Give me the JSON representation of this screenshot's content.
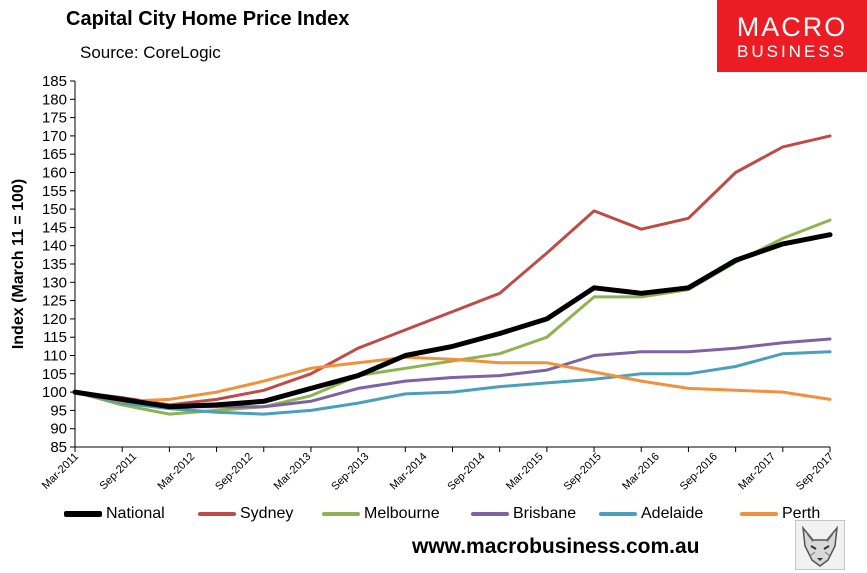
{
  "header": {
    "title": "Capital City Home Price Index",
    "subtitle": "Source: CoreLogic"
  },
  "brand": {
    "name": "MACRO",
    "sub": "BUSINESS",
    "color": "#ec1c24"
  },
  "footer": {
    "url": "www.macrobusiness.com.au",
    "icon": "fox-icon"
  },
  "chart_data": {
    "type": "line",
    "title": "Capital City Home Price Index",
    "subtitle": "Source: CoreLogic",
    "ylabel": "Index (March 11 = 100)",
    "xlabel": "",
    "ylim": [
      85,
      185
    ],
    "yticks": [
      "85",
      "90",
      "95",
      "100",
      "105",
      "110",
      "115",
      "120",
      "125",
      "130",
      "135",
      "140",
      "145",
      "150",
      "155",
      "160",
      "165",
      "170",
      "175",
      "180",
      "185"
    ],
    "x_start": "Mar-2011",
    "x_step": "quarter",
    "x_tick_labels": [
      "Mar-2011",
      "Sep-2011",
      "Mar-2012",
      "Sep-2012",
      "Mar-2013",
      "Sep-2013",
      "Mar-2014",
      "Sep-2014",
      "Mar-2015",
      "Sep-2015",
      "Mar-2016",
      "Sep-2016",
      "Mar-2017",
      "Sep-2017"
    ],
    "grid": false,
    "legend": "bottom",
    "series": [
      {
        "name": "National",
        "color": "#000000",
        "width": 5,
        "values": [
          100,
          98,
          96,
          96.5,
          97.5,
          101,
          104.5,
          110,
          112.5,
          116,
          120,
          128.5,
          127,
          128.5,
          136,
          140.5,
          143
        ]
      },
      {
        "name": "Sydney",
        "color": "#be4b48",
        "width": 3,
        "values": [
          100,
          98.5,
          96.5,
          98,
          100.5,
          105,
          112,
          117,
          122,
          127,
          138,
          149.5,
          144.5,
          147.5,
          160,
          167,
          170
        ]
      },
      {
        "name": "Melbourne",
        "color": "#8eb350",
        "width": 3,
        "values": [
          100,
          96.5,
          94,
          95,
          96,
          99,
          104.5,
          106.5,
          108.5,
          110.5,
          115,
          126,
          126,
          128,
          135.5,
          142,
          147
        ]
      },
      {
        "name": "Brisbane",
        "color": "#7e62a1",
        "width": 3,
        "values": [
          100,
          97.5,
          96,
          96,
          96,
          97.5,
          101,
          103,
          104,
          104.5,
          106,
          110,
          111,
          111,
          112,
          113.5,
          114.5
        ]
      },
      {
        "name": "Adelaide",
        "color": "#4aa0bb",
        "width": 3,
        "values": [
          100,
          97,
          95.5,
          94.5,
          94,
          95,
          97,
          99.5,
          100,
          101.5,
          102.5,
          103.5,
          105,
          105,
          107,
          110.5,
          111
        ]
      },
      {
        "name": "Perth",
        "color": "#f0913e",
        "width": 3,
        "values": [
          100,
          97.5,
          98,
          100,
          103,
          106.5,
          108,
          109.5,
          109,
          108,
          108,
          105.5,
          103,
          101,
          100.5,
          100,
          98
        ]
      }
    ]
  }
}
